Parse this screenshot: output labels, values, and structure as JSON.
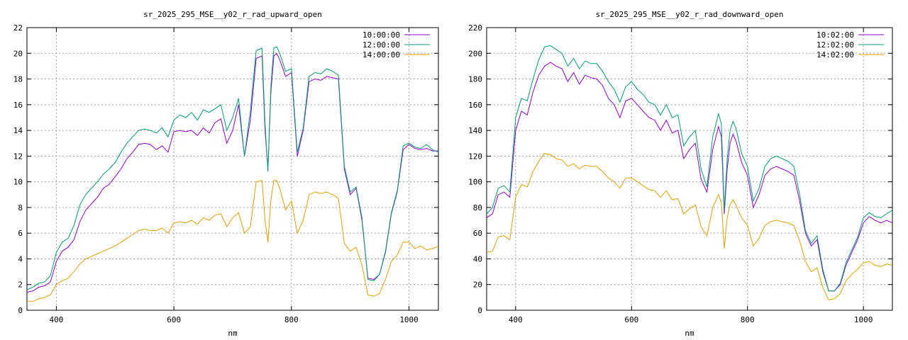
{
  "colors": {
    "series1": "#9400d3",
    "series2": "#009e73",
    "series3": "#e69f00",
    "grid": "#a0a0a0",
    "axis": "#000000"
  },
  "chart_data": [
    {
      "type": "line",
      "title": "sr_2025_295_MSE__y02_r_rad_upward_open",
      "xlabel": "nm",
      "ylabel": "",
      "xlim": [
        350,
        1050
      ],
      "ylim": [
        0,
        22
      ],
      "xticks": [
        400,
        600,
        800,
        1000
      ],
      "yticks": [
        0,
        2,
        4,
        6,
        8,
        10,
        12,
        14,
        16,
        18,
        20,
        22
      ],
      "grid": true,
      "legend": "top-right",
      "series": [
        {
          "name": "10:00:00",
          "x": [
            350,
            360,
            370,
            380,
            390,
            400,
            410,
            420,
            430,
            440,
            450,
            460,
            470,
            480,
            490,
            500,
            510,
            520,
            530,
            540,
            550,
            560,
            570,
            580,
            590,
            600,
            610,
            620,
            630,
            640,
            650,
            660,
            670,
            680,
            690,
            700,
            710,
            720,
            730,
            740,
            750,
            755,
            760,
            765,
            770,
            775,
            780,
            790,
            800,
            810,
            820,
            830,
            840,
            850,
            860,
            870,
            880,
            890,
            900,
            910,
            920,
            930,
            940,
            950,
            960,
            970,
            980,
            990,
            1000,
            1010,
            1020,
            1030,
            1040,
            1050
          ],
          "y": [
            1.4,
            1.5,
            1.8,
            1.9,
            2.2,
            3.8,
            4.6,
            4.9,
            5.5,
            6.9,
            7.8,
            8.3,
            8.8,
            9.5,
            9.8,
            10.4,
            11.0,
            11.8,
            12.3,
            12.9,
            13.0,
            12.9,
            12.5,
            12.8,
            12.3,
            13.9,
            14.0,
            13.9,
            14.0,
            13.6,
            14.2,
            13.8,
            14.6,
            14.9,
            13.0,
            14.0,
            16.0,
            12.0,
            14.8,
            19.6,
            19.8,
            14.0,
            11.0,
            17.0,
            19.8,
            20.0,
            19.5,
            18.2,
            18.5,
            12.0,
            14.0,
            17.8,
            18.0,
            17.9,
            18.2,
            18.1,
            18.0,
            11.0,
            9.0,
            9.5,
            7.0,
            2.5,
            2.4,
            2.8,
            4.5,
            7.5,
            9.2,
            12.5,
            12.9,
            12.6,
            12.5,
            12.6,
            12.4,
            12.4
          ]
        },
        {
          "name": "12:00:00",
          "x": [
            350,
            360,
            370,
            380,
            390,
            400,
            410,
            420,
            430,
            440,
            450,
            460,
            470,
            480,
            490,
            500,
            510,
            520,
            530,
            540,
            550,
            560,
            570,
            580,
            590,
            600,
            610,
            620,
            630,
            640,
            650,
            660,
            670,
            680,
            690,
            700,
            710,
            720,
            730,
            740,
            750,
            755,
            760,
            765,
            770,
            775,
            780,
            790,
            800,
            810,
            820,
            830,
            840,
            850,
            860,
            870,
            880,
            890,
            900,
            910,
            920,
            930,
            940,
            950,
            960,
            970,
            980,
            990,
            1000,
            1010,
            1020,
            1030,
            1040,
            1050
          ],
          "y": [
            1.6,
            1.8,
            2.1,
            2.2,
            2.7,
            4.5,
            5.3,
            5.6,
            6.6,
            8.2,
            9.0,
            9.5,
            10.0,
            10.6,
            11.0,
            11.5,
            12.3,
            13.0,
            13.5,
            14.0,
            14.1,
            14.0,
            13.8,
            14.2,
            13.5,
            14.8,
            15.2,
            15.0,
            15.4,
            14.8,
            15.6,
            15.4,
            15.7,
            16.0,
            14.0,
            15.0,
            16.5,
            12.0,
            15.5,
            20.2,
            20.4,
            14.5,
            10.8,
            17.5,
            20.4,
            20.5,
            20.0,
            18.6,
            18.8,
            12.3,
            14.2,
            18.2,
            18.5,
            18.4,
            18.8,
            18.6,
            18.3,
            11.2,
            9.2,
            9.6,
            7.2,
            2.4,
            2.3,
            2.8,
            4.6,
            7.6,
            9.3,
            12.8,
            13.0,
            12.7,
            12.6,
            12.9,
            12.5,
            12.3
          ]
        },
        {
          "name": "14:00:00",
          "x": [
            350,
            360,
            370,
            380,
            390,
            400,
            410,
            420,
            430,
            440,
            450,
            460,
            470,
            480,
            490,
            500,
            510,
            520,
            530,
            540,
            550,
            560,
            570,
            580,
            590,
            600,
            610,
            620,
            630,
            640,
            650,
            660,
            670,
            680,
            690,
            700,
            710,
            720,
            730,
            740,
            750,
            755,
            760,
            765,
            770,
            775,
            780,
            790,
            800,
            810,
            820,
            830,
            840,
            850,
            860,
            870,
            880,
            890,
            900,
            910,
            920,
            930,
            940,
            950,
            960,
            970,
            980,
            990,
            1000,
            1010,
            1020,
            1030,
            1040,
            1050
          ],
          "y": [
            0.7,
            0.7,
            0.9,
            1.0,
            1.2,
            2.0,
            2.3,
            2.5,
            3.0,
            3.6,
            4.0,
            4.2,
            4.4,
            4.6,
            4.8,
            5.0,
            5.3,
            5.6,
            5.9,
            6.2,
            6.3,
            6.2,
            6.2,
            6.4,
            6.0,
            6.8,
            6.9,
            6.8,
            7.0,
            6.7,
            7.2,
            7.0,
            7.4,
            7.5,
            6.5,
            7.2,
            7.6,
            6.0,
            6.5,
            10.0,
            10.1,
            7.0,
            5.3,
            8.6,
            10.1,
            10.1,
            9.5,
            7.8,
            8.5,
            6.0,
            7.0,
            9.0,
            9.2,
            9.1,
            9.2,
            9.0,
            8.7,
            5.2,
            4.6,
            4.9,
            3.5,
            1.2,
            1.1,
            1.3,
            2.4,
            3.8,
            4.3,
            5.3,
            5.3,
            4.8,
            5.0,
            4.7,
            4.8,
            5.0
          ]
        }
      ]
    },
    {
      "type": "line",
      "title": "sr_2025_295_MSE__y02_r_rad_downward_open",
      "xlabel": "nm",
      "ylabel": "",
      "xlim": [
        350,
        1050
      ],
      "ylim": [
        0,
        220
      ],
      "xticks": [
        400,
        600,
        800,
        1000
      ],
      "yticks": [
        0,
        20,
        40,
        60,
        80,
        100,
        120,
        140,
        160,
        180,
        200,
        220
      ],
      "grid": true,
      "legend": "top-right",
      "series": [
        {
          "name": "10:02:00",
          "x": [
            350,
            360,
            370,
            380,
            390,
            400,
            410,
            420,
            430,
            440,
            450,
            460,
            470,
            480,
            490,
            500,
            510,
            520,
            530,
            540,
            550,
            560,
            570,
            580,
            590,
            600,
            610,
            620,
            630,
            640,
            650,
            660,
            670,
            680,
            690,
            700,
            710,
            720,
            730,
            740,
            750,
            755,
            760,
            765,
            770,
            775,
            780,
            790,
            800,
            810,
            820,
            830,
            840,
            850,
            860,
            870,
            880,
            890,
            900,
            910,
            920,
            930,
            940,
            950,
            960,
            970,
            980,
            990,
            1000,
            1010,
            1020,
            1030,
            1040,
            1050
          ],
          "y": [
            72,
            75,
            90,
            92,
            88,
            140,
            155,
            152,
            170,
            183,
            190,
            193,
            190,
            188,
            178,
            185,
            176,
            183,
            181,
            180,
            175,
            165,
            160,
            150,
            163,
            165,
            160,
            155,
            150,
            148,
            140,
            148,
            138,
            140,
            118,
            125,
            130,
            102,
            92,
            125,
            143,
            135,
            75,
            110,
            130,
            137,
            132,
            115,
            105,
            80,
            90,
            105,
            110,
            112,
            110,
            108,
            105,
            85,
            60,
            50,
            55,
            30,
            15,
            15,
            20,
            35,
            45,
            55,
            68,
            73,
            70,
            68,
            70,
            68
          ]
        },
        {
          "name": "12:02:00",
          "x": [
            350,
            360,
            370,
            380,
            390,
            400,
            410,
            420,
            430,
            440,
            450,
            460,
            470,
            480,
            490,
            500,
            510,
            520,
            530,
            540,
            550,
            560,
            570,
            580,
            590,
            600,
            610,
            620,
            630,
            640,
            650,
            660,
            670,
            680,
            690,
            700,
            710,
            720,
            730,
            740,
            750,
            755,
            760,
            765,
            770,
            775,
            780,
            790,
            800,
            810,
            820,
            830,
            840,
            850,
            860,
            870,
            880,
            890,
            900,
            910,
            920,
            930,
            940,
            950,
            960,
            970,
            980,
            990,
            1000,
            1010,
            1020,
            1030,
            1040,
            1050
          ],
          "y": [
            75,
            80,
            95,
            97,
            92,
            150,
            165,
            163,
            180,
            195,
            205,
            206,
            203,
            200,
            190,
            196,
            188,
            194,
            192,
            192,
            186,
            178,
            172,
            162,
            174,
            178,
            172,
            168,
            162,
            160,
            152,
            160,
            150,
            152,
            128,
            135,
            140,
            110,
            96,
            135,
            153,
            145,
            78,
            118,
            140,
            147,
            142,
            122,
            112,
            85,
            95,
            112,
            118,
            120,
            118,
            116,
            112,
            90,
            62,
            52,
            58,
            32,
            15,
            15,
            21,
            37,
            47,
            57,
            72,
            76,
            73,
            72,
            75,
            78
          ]
        },
        {
          "name": "14:02:00",
          "x": [
            350,
            360,
            370,
            380,
            390,
            400,
            410,
            420,
            430,
            440,
            450,
            460,
            470,
            480,
            490,
            500,
            510,
            520,
            530,
            540,
            550,
            560,
            570,
            580,
            590,
            600,
            610,
            620,
            630,
            640,
            650,
            660,
            670,
            680,
            690,
            700,
            710,
            720,
            730,
            740,
            750,
            755,
            760,
            765,
            770,
            775,
            780,
            790,
            800,
            810,
            820,
            830,
            840,
            850,
            860,
            870,
            880,
            890,
            900,
            910,
            920,
            930,
            940,
            950,
            960,
            970,
            980,
            990,
            1000,
            1010,
            1020,
            1030,
            1040,
            1050
          ],
          "y": [
            45,
            46,
            57,
            58,
            55,
            88,
            98,
            96,
            108,
            116,
            122,
            121,
            118,
            117,
            112,
            114,
            110,
            113,
            112,
            112,
            108,
            103,
            100,
            95,
            103,
            103,
            100,
            97,
            94,
            93,
            88,
            93,
            86,
            87,
            75,
            79,
            82,
            65,
            58,
            80,
            90,
            84,
            48,
            72,
            82,
            86,
            82,
            72,
            66,
            50,
            56,
            66,
            69,
            70,
            69,
            68,
            66,
            54,
            38,
            30,
            33,
            18,
            8,
            9,
            13,
            23,
            28,
            32,
            37,
            38,
            35,
            34,
            36,
            35
          ]
        }
      ]
    }
  ]
}
